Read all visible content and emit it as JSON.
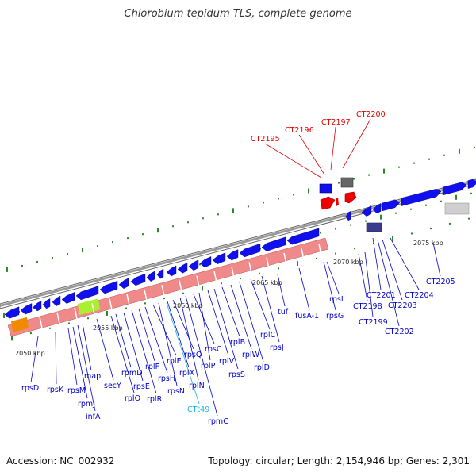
{
  "title": "Chlorobium tepidum TLS, complete genome",
  "footer": {
    "accession": "Accession: NC_002932",
    "topology": "Topology: circular; Length: 2,154,946 bp; Genes: 2,301"
  },
  "colors": {
    "gene_label": "#0000cc",
    "rna_label": "#1fb4e0",
    "highlight_label": "#e00000",
    "cds_arrow": "#1010ee",
    "highlight_arrow": "#ee0000",
    "backbone": "#888888",
    "tick": "#2a8a2a",
    "cog_bar": "#f08a8a"
  },
  "axis_labels": [
    "2050 kbp",
    "2055 kbp",
    "2060 kbp",
    "2065 kbp",
    "2070 kbp",
    "2075 kbp"
  ],
  "gene_labels": [
    {
      "id": "rpsD",
      "kind": "gene"
    },
    {
      "id": "rpsK",
      "kind": "gene"
    },
    {
      "id": "rpsM",
      "kind": "gene"
    },
    {
      "id": "rpmJ",
      "kind": "gene"
    },
    {
      "id": "infA",
      "kind": "gene"
    },
    {
      "id": "map",
      "kind": "gene"
    },
    {
      "id": "secY",
      "kind": "gene"
    },
    {
      "id": "rplO",
      "kind": "gene"
    },
    {
      "id": "rpmD",
      "kind": "gene"
    },
    {
      "id": "rpsE",
      "kind": "gene"
    },
    {
      "id": "rplR",
      "kind": "gene"
    },
    {
      "id": "rplF",
      "kind": "gene"
    },
    {
      "id": "rpsH",
      "kind": "gene"
    },
    {
      "id": "rplE",
      "kind": "gene"
    },
    {
      "id": "rpsN",
      "kind": "gene"
    },
    {
      "id": "rplX",
      "kind": "gene"
    },
    {
      "id": "rpsQ",
      "kind": "gene"
    },
    {
      "id": "CTt49",
      "kind": "rna"
    },
    {
      "id": "rplN",
      "kind": "gene"
    },
    {
      "id": "rpmC",
      "kind": "gene"
    },
    {
      "id": "rpsC",
      "kind": "gene"
    },
    {
      "id": "rplP",
      "kind": "gene"
    },
    {
      "id": "rplV",
      "kind": "gene"
    },
    {
      "id": "rpsS",
      "kind": "gene"
    },
    {
      "id": "rplB",
      "kind": "gene"
    },
    {
      "id": "rplW",
      "kind": "gene"
    },
    {
      "id": "rplD",
      "kind": "gene"
    },
    {
      "id": "rplC",
      "kind": "gene"
    },
    {
      "id": "rpsJ",
      "kind": "gene"
    },
    {
      "id": "tuf",
      "kind": "gene"
    },
    {
      "id": "fusA-1",
      "kind": "gene"
    },
    {
      "id": "rpsL",
      "kind": "gene"
    },
    {
      "id": "rpsG",
      "kind": "gene"
    },
    {
      "id": "CT2198",
      "kind": "gene"
    },
    {
      "id": "CT2199",
      "kind": "gene"
    },
    {
      "id": "CT2201",
      "kind": "gene"
    },
    {
      "id": "CT2202",
      "kind": "gene"
    },
    {
      "id": "CT2203",
      "kind": "gene"
    },
    {
      "id": "CT2204",
      "kind": "gene"
    },
    {
      "id": "CT2205",
      "kind": "gene"
    },
    {
      "id": "CT2195",
      "kind": "highlight"
    },
    {
      "id": "CT2196",
      "kind": "highlight"
    },
    {
      "id": "CT2197",
      "kind": "highlight"
    },
    {
      "id": "CT2200",
      "kind": "highlight"
    }
  ]
}
